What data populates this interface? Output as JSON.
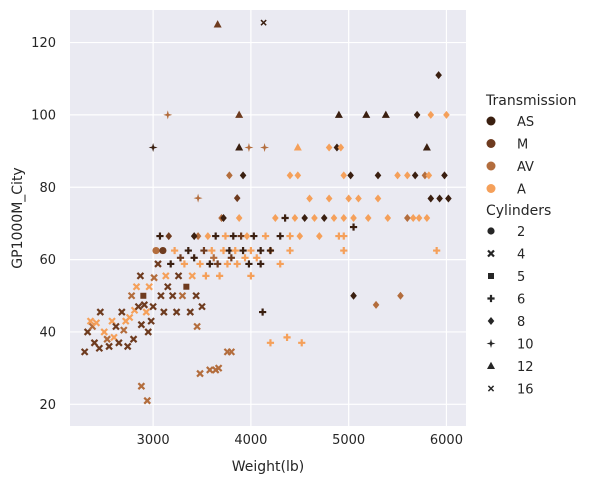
{
  "chart_data": {
    "type": "scatter",
    "xlabel": "Weight(lb)",
    "ylabel": "GP1000M_City",
    "xlim": [
      2150,
      6200
    ],
    "ylim": [
      14,
      129
    ],
    "xticks": [
      3000,
      4000,
      5000,
      6000
    ],
    "yticks": [
      20,
      40,
      60,
      80,
      100,
      120
    ],
    "grid": true,
    "background": "#eaeaf2",
    "legend_placement": "right",
    "hue": {
      "title": "Transmission",
      "levels": [
        {
          "label": "AS",
          "color": "#3a1f10"
        },
        {
          "label": "M",
          "color": "#6e3b1f"
        },
        {
          "label": "AV",
          "color": "#b36d3d"
        },
        {
          "label": "A",
          "color": "#f5a05a"
        }
      ]
    },
    "style": {
      "title": "Cylinders",
      "levels": [
        {
          "label": "2",
          "marker": "circle"
        },
        {
          "label": "4",
          "marker": "x"
        },
        {
          "label": "5",
          "marker": "square"
        },
        {
          "label": "6",
          "marker": "plus"
        },
        {
          "label": "8",
          "marker": "diamond"
        },
        {
          "label": "10",
          "marker": "star4"
        },
        {
          "label": "12",
          "marker": "triangle"
        },
        {
          "label": "16",
          "marker": "xthin"
        }
      ]
    },
    "points": [
      {
        "x": 2300,
        "y": 34.5,
        "t": "M",
        "c": "4"
      },
      {
        "x": 2330,
        "y": 40,
        "t": "M",
        "c": "4"
      },
      {
        "x": 2360,
        "y": 43,
        "t": "A",
        "c": "4"
      },
      {
        "x": 2380,
        "y": 41.5,
        "t": "AV",
        "c": "4"
      },
      {
        "x": 2400,
        "y": 37,
        "t": "M",
        "c": "4"
      },
      {
        "x": 2420,
        "y": 42.5,
        "t": "A",
        "c": "4"
      },
      {
        "x": 2450,
        "y": 35.5,
        "t": "M",
        "c": "4"
      },
      {
        "x": 2460,
        "y": 45.5,
        "t": "M",
        "c": "4"
      },
      {
        "x": 2500,
        "y": 40,
        "t": "A",
        "c": "4"
      },
      {
        "x": 2530,
        "y": 38,
        "t": "AV",
        "c": "4"
      },
      {
        "x": 2550,
        "y": 36,
        "t": "M",
        "c": "4"
      },
      {
        "x": 2580,
        "y": 43,
        "t": "A",
        "c": "4"
      },
      {
        "x": 2600,
        "y": 38.5,
        "t": "A",
        "c": "4"
      },
      {
        "x": 2620,
        "y": 41.5,
        "t": "M",
        "c": "4"
      },
      {
        "x": 2650,
        "y": 37,
        "t": "M",
        "c": "4"
      },
      {
        "x": 2680,
        "y": 45.5,
        "t": "M",
        "c": "4"
      },
      {
        "x": 2700,
        "y": 40.5,
        "t": "AV",
        "c": "4"
      },
      {
        "x": 2720,
        "y": 43,
        "t": "A",
        "c": "4"
      },
      {
        "x": 2740,
        "y": 36,
        "t": "M",
        "c": "4"
      },
      {
        "x": 2760,
        "y": 44,
        "t": "A",
        "c": "4"
      },
      {
        "x": 2780,
        "y": 50,
        "t": "AV",
        "c": "4"
      },
      {
        "x": 2800,
        "y": 38,
        "t": "M",
        "c": "4"
      },
      {
        "x": 2810,
        "y": 46,
        "t": "A",
        "c": "4"
      },
      {
        "x": 2830,
        "y": 52.5,
        "t": "A",
        "c": "4"
      },
      {
        "x": 2850,
        "y": 47,
        "t": "M",
        "c": "4"
      },
      {
        "x": 2870,
        "y": 55.5,
        "t": "M",
        "c": "4"
      },
      {
        "x": 2880,
        "y": 42,
        "t": "M",
        "c": "4"
      },
      {
        "x": 2900,
        "y": 50,
        "t": "M",
        "c": "5"
      },
      {
        "x": 2910,
        "y": 47.5,
        "t": "M",
        "c": "4"
      },
      {
        "x": 2930,
        "y": 45.5,
        "t": "A",
        "c": "4"
      },
      {
        "x": 2950,
        "y": 40,
        "t": "M",
        "c": "4"
      },
      {
        "x": 2960,
        "y": 52.5,
        "t": "A",
        "c": "4"
      },
      {
        "x": 2980,
        "y": 43,
        "t": "M",
        "c": "4"
      },
      {
        "x": 3000,
        "y": 47,
        "t": "M",
        "c": "4"
      },
      {
        "x": 3010,
        "y": 55,
        "t": "AV",
        "c": "4"
      },
      {
        "x": 3030,
        "y": 62.5,
        "t": "AV",
        "c": "2"
      },
      {
        "x": 3050,
        "y": 58.8,
        "t": "M",
        "c": "4"
      },
      {
        "x": 3070,
        "y": 66.5,
        "t": "AS",
        "c": "6"
      },
      {
        "x": 3080,
        "y": 50,
        "t": "M",
        "c": "4"
      },
      {
        "x": 3100,
        "y": 62.5,
        "t": "M",
        "c": "2"
      },
      {
        "x": 3110,
        "y": 45.5,
        "t": "M",
        "c": "4"
      },
      {
        "x": 3130,
        "y": 55.5,
        "t": "A",
        "c": "4"
      },
      {
        "x": 3150,
        "y": 52.5,
        "t": "M",
        "c": "4"
      },
      {
        "x": 3160,
        "y": 66.5,
        "t": "M",
        "c": "8"
      },
      {
        "x": 3180,
        "y": 58.8,
        "t": "AS",
        "c": "6"
      },
      {
        "x": 3200,
        "y": 50,
        "t": "M",
        "c": "4"
      },
      {
        "x": 3220,
        "y": 62.5,
        "t": "A",
        "c": "6"
      },
      {
        "x": 3240,
        "y": 45.5,
        "t": "M",
        "c": "4"
      },
      {
        "x": 3260,
        "y": 55.5,
        "t": "M",
        "c": "4"
      },
      {
        "x": 3280,
        "y": 60.5,
        "t": "M",
        "c": "6"
      },
      {
        "x": 3300,
        "y": 50,
        "t": "AV",
        "c": "4"
      },
      {
        "x": 3320,
        "y": 58.8,
        "t": "A",
        "c": "6"
      },
      {
        "x": 3340,
        "y": 52.5,
        "t": "M",
        "c": "5"
      },
      {
        "x": 3360,
        "y": 62.5,
        "t": "AS",
        "c": "6"
      },
      {
        "x": 3380,
        "y": 45.5,
        "t": "M",
        "c": "4"
      },
      {
        "x": 3400,
        "y": 55.5,
        "t": "A",
        "c": "4"
      },
      {
        "x": 3420,
        "y": 60.5,
        "t": "AS",
        "c": "6"
      },
      {
        "x": 3440,
        "y": 50,
        "t": "M",
        "c": "4"
      },
      {
        "x": 3460,
        "y": 66.5,
        "t": "AV",
        "c": "8"
      },
      {
        "x": 3480,
        "y": 58.8,
        "t": "A",
        "c": "6"
      },
      {
        "x": 3500,
        "y": 47,
        "t": "M",
        "c": "4"
      },
      {
        "x": 3520,
        "y": 62.5,
        "t": "M",
        "c": "6"
      },
      {
        "x": 3540,
        "y": 55.5,
        "t": "A",
        "c": "6"
      },
      {
        "x": 3560,
        "y": 66.5,
        "t": "A",
        "c": "8"
      },
      {
        "x": 3580,
        "y": 58.8,
        "t": "AS",
        "c": "6"
      },
      {
        "x": 3600,
        "y": 62.5,
        "t": "A",
        "c": "6"
      },
      {
        "x": 3620,
        "y": 60.5,
        "t": "AV",
        "c": "6"
      },
      {
        "x": 3640,
        "y": 66.5,
        "t": "AS",
        "c": "6"
      },
      {
        "x": 3660,
        "y": 58.8,
        "t": "M",
        "c": "6"
      },
      {
        "x": 3680,
        "y": 55.5,
        "t": "A",
        "c": "6"
      },
      {
        "x": 3700,
        "y": 71.5,
        "t": "AV",
        "c": "8"
      },
      {
        "x": 3720,
        "y": 62.5,
        "t": "A",
        "c": "6"
      },
      {
        "x": 3740,
        "y": 66.5,
        "t": "A",
        "c": "6"
      },
      {
        "x": 3760,
        "y": 58.8,
        "t": "A",
        "c": "6"
      },
      {
        "x": 3780,
        "y": 62.5,
        "t": "AS",
        "c": "6"
      },
      {
        "x": 3800,
        "y": 60.5,
        "t": "M",
        "c": "6"
      },
      {
        "x": 3820,
        "y": 66.5,
        "t": "AS",
        "c": "6"
      },
      {
        "x": 3840,
        "y": 62.5,
        "t": "A",
        "c": "6"
      },
      {
        "x": 3860,
        "y": 58.8,
        "t": "A",
        "c": "6"
      },
      {
        "x": 3880,
        "y": 71.5,
        "t": "A",
        "c": "8"
      },
      {
        "x": 3900,
        "y": 66.5,
        "t": "M",
        "c": "6"
      },
      {
        "x": 3920,
        "y": 62.5,
        "t": "AS",
        "c": "6"
      },
      {
        "x": 3940,
        "y": 60.5,
        "t": "A",
        "c": "6"
      },
      {
        "x": 3960,
        "y": 66.5,
        "t": "A",
        "c": "8"
      },
      {
        "x": 3980,
        "y": 58.8,
        "t": "AS",
        "c": "6"
      },
      {
        "x": 4000,
        "y": 62.5,
        "t": "A",
        "c": "6"
      },
      {
        "x": 4030,
        "y": 66.5,
        "t": "AS",
        "c": "6"
      },
      {
        "x": 4060,
        "y": 60.5,
        "t": "A",
        "c": "6"
      },
      {
        "x": 4100,
        "y": 62.5,
        "t": "AS",
        "c": "6"
      },
      {
        "x": 4150,
        "y": 66.5,
        "t": "A",
        "c": "6"
      },
      {
        "x": 4200,
        "y": 62.5,
        "t": "A",
        "c": "8"
      },
      {
        "x": 4250,
        "y": 71.5,
        "t": "A",
        "c": "8"
      },
      {
        "x": 4300,
        "y": 66.5,
        "t": "AS",
        "c": "6"
      },
      {
        "x": 4350,
        "y": 71.5,
        "t": "AS",
        "c": "6"
      },
      {
        "x": 4400,
        "y": 66.5,
        "t": "A",
        "c": "6"
      },
      {
        "x": 4450,
        "y": 71.5,
        "t": "A",
        "c": "8"
      },
      {
        "x": 4500,
        "y": 66.5,
        "t": "A",
        "c": "8"
      },
      {
        "x": 4550,
        "y": 71.5,
        "t": "AS",
        "c": "8"
      },
      {
        "x": 4600,
        "y": 76.9,
        "t": "A",
        "c": "8"
      },
      {
        "x": 4650,
        "y": 71.5,
        "t": "A",
        "c": "8"
      },
      {
        "x": 4700,
        "y": 66.5,
        "t": "A",
        "c": "8"
      },
      {
        "x": 4750,
        "y": 71.5,
        "t": "AS",
        "c": "8"
      },
      {
        "x": 4800,
        "y": 76.9,
        "t": "A",
        "c": "8"
      },
      {
        "x": 4850,
        "y": 71.5,
        "t": "A",
        "c": "8"
      },
      {
        "x": 4900,
        "y": 66.5,
        "t": "A",
        "c": "6"
      },
      {
        "x": 4950,
        "y": 71.5,
        "t": "A",
        "c": "8"
      },
      {
        "x": 5000,
        "y": 76.9,
        "t": "A",
        "c": "8"
      },
      {
        "x": 5050,
        "y": 71.5,
        "t": "A",
        "c": "8"
      },
      {
        "x": 5100,
        "y": 76.9,
        "t": "A",
        "c": "8"
      },
      {
        "x": 5200,
        "y": 71.5,
        "t": "A",
        "c": "8"
      },
      {
        "x": 5300,
        "y": 76.9,
        "t": "A",
        "c": "8"
      },
      {
        "x": 5400,
        "y": 71.5,
        "t": "A",
        "c": "8"
      },
      {
        "x": 4000,
        "y": 55.5,
        "t": "A",
        "c": "6"
      },
      {
        "x": 4100,
        "y": 58.8,
        "t": "AS",
        "c": "6"
      },
      {
        "x": 4200,
        "y": 62.5,
        "t": "AS",
        "c": "6"
      },
      {
        "x": 4300,
        "y": 58.8,
        "t": "A",
        "c": "6"
      },
      {
        "x": 4400,
        "y": 62.5,
        "t": "A",
        "c": "6"
      },
      {
        "x": 4950,
        "y": 62.5,
        "t": "A",
        "c": "6"
      },
      {
        "x": 4950,
        "y": 66.5,
        "t": "A",
        "c": "6"
      },
      {
        "x": 5050,
        "y": 69,
        "t": "AS",
        "c": "6"
      },
      {
        "x": 4120,
        "y": 45.5,
        "t": "AS",
        "c": "6"
      },
      {
        "x": 4200,
        "y": 37,
        "t": "A",
        "c": "6"
      },
      {
        "x": 4370,
        "y": 38.5,
        "t": "A",
        "c": "6"
      },
      {
        "x": 4520,
        "y": 37,
        "t": "A",
        "c": "6"
      },
      {
        "x": 2880,
        "y": 25,
        "t": "AV",
        "c": "4"
      },
      {
        "x": 2940,
        "y": 21,
        "t": "AV",
        "c": "4"
      },
      {
        "x": 3480,
        "y": 28.5,
        "t": "AV",
        "c": "4"
      },
      {
        "x": 3580,
        "y": 29.5,
        "t": "AV",
        "c": "4"
      },
      {
        "x": 3640,
        "y": 29.5,
        "t": "AV",
        "c": "4"
      },
      {
        "x": 3670,
        "y": 30,
        "t": "AV",
        "c": "4"
      },
      {
        "x": 3760,
        "y": 34.5,
        "t": "AV",
        "c": "4"
      },
      {
        "x": 3800,
        "y": 34.5,
        "t": "AV",
        "c": "4"
      },
      {
        "x": 3450,
        "y": 41.5,
        "t": "AV",
        "c": "4"
      },
      {
        "x": 3000,
        "y": 91,
        "t": "AS",
        "c": "10"
      },
      {
        "x": 3150,
        "y": 100,
        "t": "AV",
        "c": "10"
      },
      {
        "x": 3460,
        "y": 77,
        "t": "AV",
        "c": "10"
      },
      {
        "x": 3660,
        "y": 125,
        "t": "M",
        "c": "12"
      },
      {
        "x": 3780,
        "y": 83.3,
        "t": "AV",
        "c": "8"
      },
      {
        "x": 3860,
        "y": 77,
        "t": "M",
        "c": "8"
      },
      {
        "x": 3880,
        "y": 91,
        "t": "AS",
        "c": "12"
      },
      {
        "x": 3880,
        "y": 100,
        "t": "M",
        "c": "12"
      },
      {
        "x": 3920,
        "y": 83.3,
        "t": "AS",
        "c": "8"
      },
      {
        "x": 3980,
        "y": 91,
        "t": "AV",
        "c": "10"
      },
      {
        "x": 4130,
        "y": 125.5,
        "t": "AS",
        "c": "16"
      },
      {
        "x": 4140,
        "y": 91,
        "t": "AV",
        "c": "10"
      },
      {
        "x": 4400,
        "y": 83.3,
        "t": "A",
        "c": "8"
      },
      {
        "x": 4480,
        "y": 83.3,
        "t": "A",
        "c": "8"
      },
      {
        "x": 4480,
        "y": 91,
        "t": "A",
        "c": "12"
      },
      {
        "x": 4800,
        "y": 91,
        "t": "A",
        "c": "8"
      },
      {
        "x": 4880,
        "y": 91,
        "t": "AS",
        "c": "8"
      },
      {
        "x": 4920,
        "y": 91,
        "t": "A",
        "c": "8"
      },
      {
        "x": 4900,
        "y": 100,
        "t": "AS",
        "c": "12"
      },
      {
        "x": 4950,
        "y": 83.3,
        "t": "A",
        "c": "8"
      },
      {
        "x": 5020,
        "y": 83.3,
        "t": "AS",
        "c": "8"
      },
      {
        "x": 5180,
        "y": 100,
        "t": "AS",
        "c": "12"
      },
      {
        "x": 5300,
        "y": 83.3,
        "t": "AS",
        "c": "8"
      },
      {
        "x": 5380,
        "y": 100,
        "t": "AS",
        "c": "12"
      },
      {
        "x": 5050,
        "y": 50,
        "t": "AS",
        "c": "8"
      },
      {
        "x": 5280,
        "y": 47.5,
        "t": "AV",
        "c": "8"
      },
      {
        "x": 5530,
        "y": 50,
        "t": "AV",
        "c": "8"
      },
      {
        "x": 5500,
        "y": 83.3,
        "t": "A",
        "c": "8"
      },
      {
        "x": 5600,
        "y": 83.3,
        "t": "A",
        "c": "8"
      },
      {
        "x": 5680,
        "y": 83.3,
        "t": "AS",
        "c": "8"
      },
      {
        "x": 5700,
        "y": 100,
        "t": "AS",
        "c": "8"
      },
      {
        "x": 5780,
        "y": 83.3,
        "t": "AV",
        "c": "8"
      },
      {
        "x": 5800,
        "y": 91,
        "t": "AS",
        "c": "12"
      },
      {
        "x": 5820,
        "y": 83.3,
        "t": "A",
        "c": "8"
      },
      {
        "x": 5840,
        "y": 100,
        "t": "A",
        "c": "8"
      },
      {
        "x": 5900,
        "y": 62.5,
        "t": "A",
        "c": "6"
      },
      {
        "x": 5920,
        "y": 111,
        "t": "AS",
        "c": "8"
      },
      {
        "x": 5930,
        "y": 76.9,
        "t": "AS",
        "c": "8"
      },
      {
        "x": 5980,
        "y": 83.3,
        "t": "AS",
        "c": "8"
      },
      {
        "x": 6000,
        "y": 100,
        "t": "A",
        "c": "8"
      },
      {
        "x": 6020,
        "y": 76.9,
        "t": "AS",
        "c": "8"
      },
      {
        "x": 5660,
        "y": 71.5,
        "t": "A",
        "c": "8"
      },
      {
        "x": 5720,
        "y": 71.5,
        "t": "A",
        "c": "8"
      },
      {
        "x": 5800,
        "y": 71.5,
        "t": "A",
        "c": "8"
      },
      {
        "x": 5840,
        "y": 76.9,
        "t": "AS",
        "c": "8"
      },
      {
        "x": 5600,
        "y": 71.5,
        "t": "AV",
        "c": "8"
      },
      {
        "x": 3720,
        "y": 71.5,
        "t": "AS",
        "c": "8"
      },
      {
        "x": 3420,
        "y": 66.5,
        "t": "AS",
        "c": "8"
      }
    ]
  }
}
